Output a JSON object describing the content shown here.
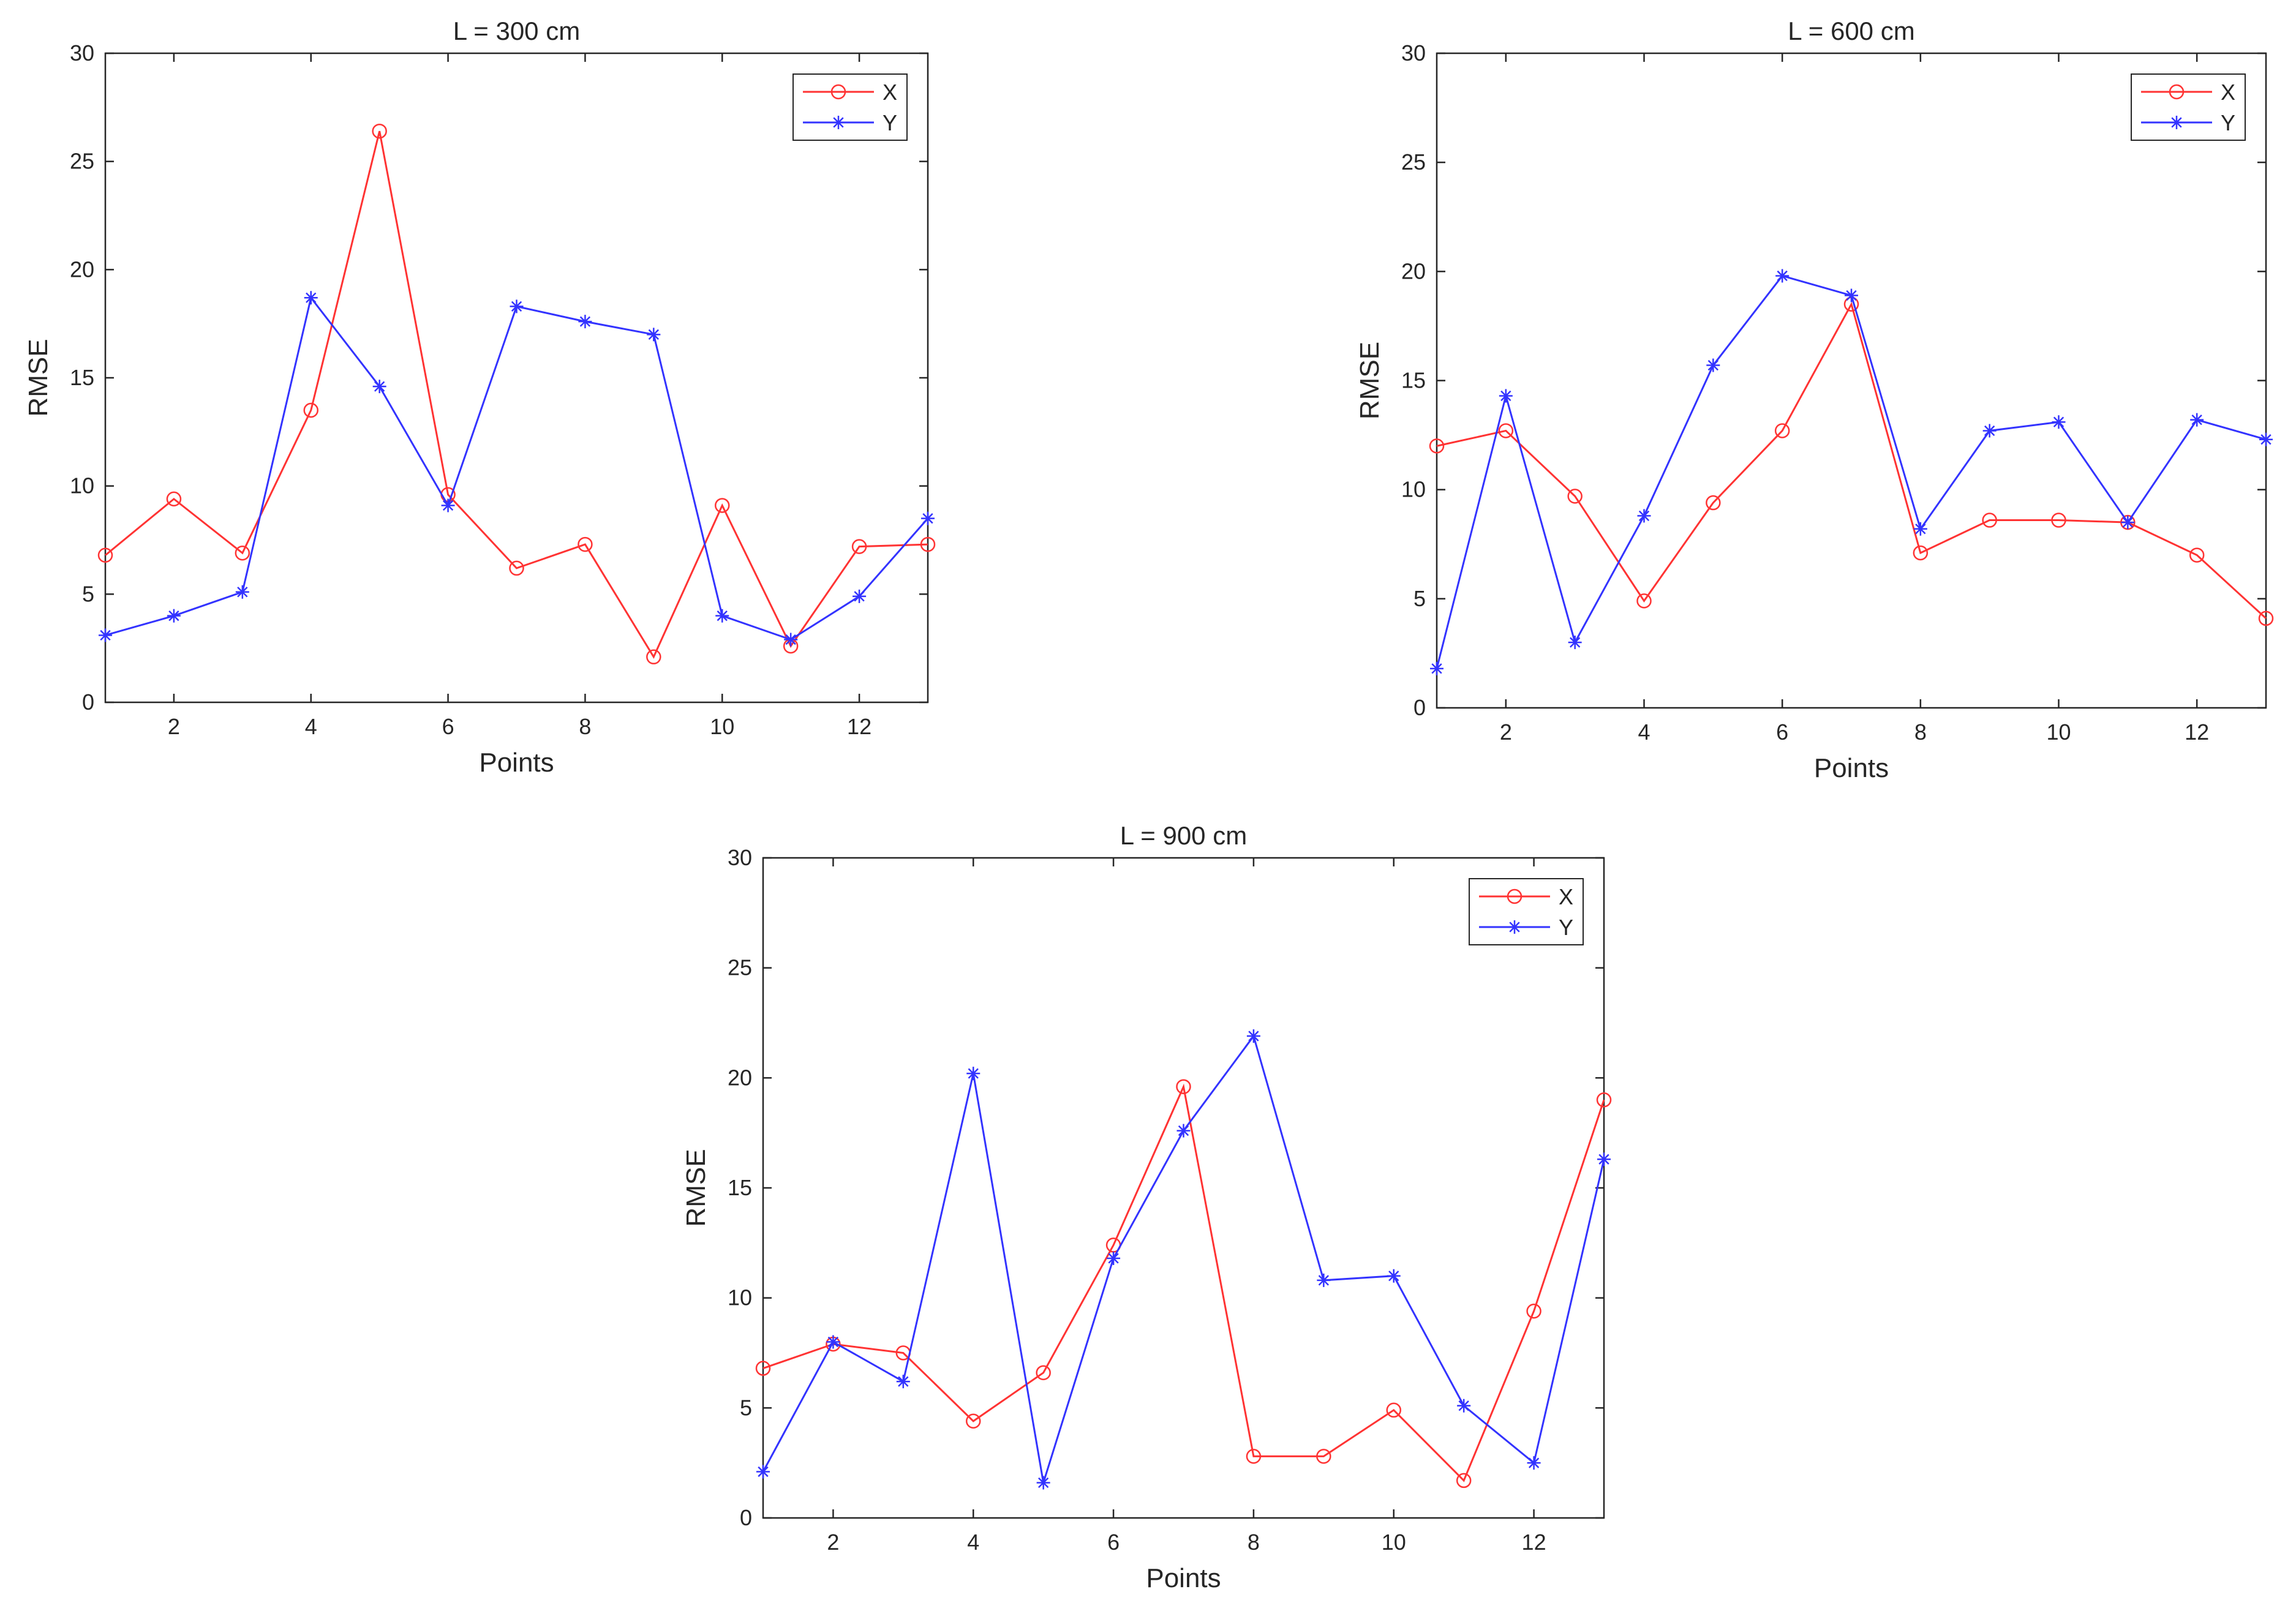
{
  "chart_data": [
    {
      "type": "line",
      "title": "L = 300 cm",
      "xlabel": "Points",
      "ylabel": "RMSE",
      "xlim": [
        1,
        13
      ],
      "ylim": [
        0,
        30
      ],
      "xticks": [
        2,
        4,
        6,
        8,
        10,
        12
      ],
      "yticks": [
        0,
        5,
        10,
        15,
        20,
        25,
        30
      ],
      "legend_position": "top-right",
      "x": [
        1,
        2,
        3,
        4,
        5,
        6,
        7,
        8,
        9,
        10,
        11,
        12,
        13
      ],
      "series": [
        {
          "name": "X",
          "color": "#ff3333",
          "marker": "circle",
          "values": [
            6.8,
            9.4,
            6.9,
            13.5,
            26.4,
            9.6,
            6.2,
            7.3,
            2.1,
            9.1,
            2.6,
            7.2,
            7.3
          ]
        },
        {
          "name": "Y",
          "color": "#3333ff",
          "marker": "asterisk",
          "values": [
            3.1,
            4.0,
            5.1,
            18.7,
            14.6,
            9.1,
            18.3,
            17.6,
            17.0,
            4.0,
            2.9,
            4.9,
            8.5
          ]
        }
      ]
    },
    {
      "type": "line",
      "title": "L = 600 cm",
      "xlabel": "Points",
      "ylabel": "RMSE",
      "xlim": [
        1,
        13
      ],
      "ylim": [
        0,
        30
      ],
      "xticks": [
        2,
        4,
        6,
        8,
        10,
        12
      ],
      "yticks": [
        0,
        5,
        10,
        15,
        20,
        25,
        30
      ],
      "legend_position": "top-right",
      "x": [
        1,
        2,
        3,
        4,
        5,
        6,
        7,
        8,
        9,
        10,
        11,
        12,
        13
      ],
      "series": [
        {
          "name": "X",
          "color": "#ff3333",
          "marker": "circle",
          "values": [
            12.0,
            12.7,
            9.7,
            4.9,
            9.4,
            12.7,
            18.5,
            7.1,
            8.6,
            8.6,
            8.5,
            7.0,
            4.1
          ]
        },
        {
          "name": "Y",
          "color": "#3333ff",
          "marker": "asterisk",
          "values": [
            1.8,
            14.3,
            3.0,
            8.8,
            15.7,
            19.8,
            18.9,
            8.2,
            12.7,
            13.1,
            8.5,
            13.2,
            12.3
          ]
        }
      ]
    },
    {
      "type": "line",
      "title": "L = 900 cm",
      "xlabel": "Points",
      "ylabel": "RMSE",
      "xlim": [
        1,
        13
      ],
      "ylim": [
        0,
        30
      ],
      "xticks": [
        2,
        4,
        6,
        8,
        10,
        12
      ],
      "yticks": [
        0,
        5,
        10,
        15,
        20,
        25,
        30
      ],
      "legend_position": "top-right",
      "x": [
        1,
        2,
        3,
        4,
        5,
        6,
        7,
        8,
        9,
        10,
        11,
        12,
        13
      ],
      "series": [
        {
          "name": "X",
          "color": "#ff3333",
          "marker": "circle",
          "values": [
            6.8,
            7.9,
            7.5,
            4.4,
            6.6,
            12.4,
            19.6,
            2.8,
            2.8,
            4.9,
            1.7,
            9.4,
            19.0
          ]
        },
        {
          "name": "Y",
          "color": "#3333ff",
          "marker": "asterisk",
          "values": [
            2.1,
            8.0,
            6.2,
            20.2,
            1.6,
            11.8,
            17.6,
            21.9,
            10.8,
            11.0,
            5.1,
            2.5,
            16.3
          ]
        }
      ]
    }
  ]
}
